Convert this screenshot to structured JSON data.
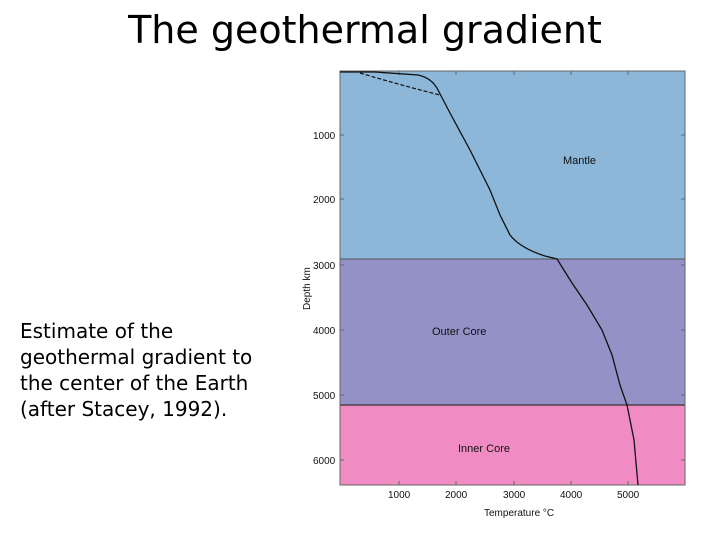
{
  "slide": {
    "title": "The geothermal gradient",
    "caption_lines": [
      "Estimate of the",
      "geothermal gradient to",
      "the center of the Earth",
      "(after Stacey, 1992)."
    ]
  },
  "figure": {
    "y_axis_label": "Depth km",
    "x_axis_label": "Temperature °C",
    "y_ticks": [
      "1000",
      "2000",
      "3000",
      "4000",
      "5000",
      "6000"
    ],
    "x_ticks": [
      "1000",
      "2000",
      "3000",
      "4000",
      "5000"
    ],
    "regions": {
      "mantle": {
        "label": "Mantle",
        "color": "#8cb7d8"
      },
      "outer_core": {
        "label": "Outer Core",
        "color": "#9391c6"
      },
      "inner_core": {
        "label": "Inner Core",
        "color": "#f08cc3"
      }
    }
  }
}
